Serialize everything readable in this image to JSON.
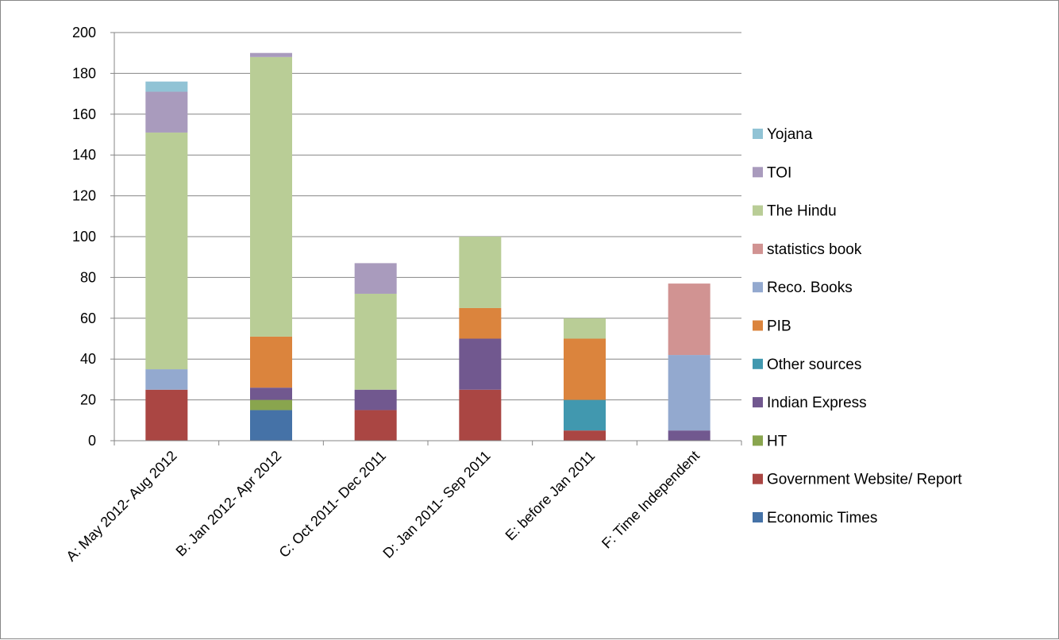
{
  "chart_data": {
    "type": "bar",
    "stacked": true,
    "title": "",
    "xlabel": "",
    "ylabel": "",
    "ylim": [
      0,
      200
    ],
    "yticks": [
      0,
      20,
      40,
      60,
      80,
      100,
      120,
      140,
      160,
      180,
      200
    ],
    "grid": true,
    "legend_position": "right",
    "categories": [
      "A: May 2012- Aug 2012",
      "B: Jan 2012- Apr 2012",
      "C: Oct 2011- Dec 2011",
      "D: Jan 2011- Sep 2011",
      "E: before Jan 2011",
      "F: Time Independent"
    ],
    "series": [
      {
        "name": "Economic Times",
        "color": "#4572A7",
        "values": [
          0,
          15,
          0,
          0,
          0,
          0
        ]
      },
      {
        "name": "Government Website/ Report",
        "color": "#AA4643",
        "values": [
          25,
          0,
          15,
          25,
          5,
          0
        ]
      },
      {
        "name": "HT",
        "color": "#89A54E",
        "values": [
          0,
          5,
          0,
          0,
          0,
          0
        ]
      },
      {
        "name": "Indian Express",
        "color": "#71588F",
        "values": [
          0,
          6,
          10,
          25,
          0,
          5
        ]
      },
      {
        "name": "Other sources",
        "color": "#4198AF",
        "values": [
          0,
          0,
          0,
          0,
          15,
          0
        ]
      },
      {
        "name": "PIB",
        "color": "#DB843D",
        "values": [
          0,
          25,
          0,
          15,
          30,
          0
        ]
      },
      {
        "name": "Reco. Books",
        "color": "#93A9CF",
        "values": [
          10,
          0,
          0,
          0,
          0,
          37
        ]
      },
      {
        "name": "statistics book",
        "color": "#D19392",
        "values": [
          0,
          0,
          0,
          0,
          0,
          35
        ]
      },
      {
        "name": "The Hindu",
        "color": "#B9CD96",
        "values": [
          116,
          137,
          47,
          35,
          10,
          0
        ]
      },
      {
        "name": "TOI",
        "color": "#A99BBD",
        "values": [
          20,
          2,
          15,
          0,
          0,
          0
        ]
      },
      {
        "name": "Yojana",
        "color": "#91C3D5",
        "values": [
          5,
          0,
          0,
          0,
          0,
          0
        ]
      }
    ]
  }
}
